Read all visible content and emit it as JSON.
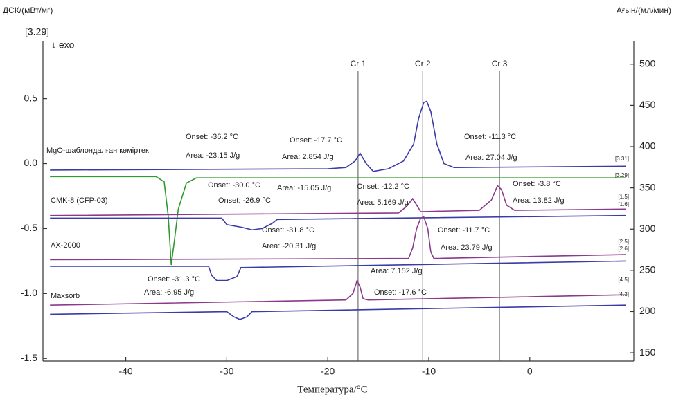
{
  "chart_data": {
    "type": "line",
    "y_label": "ДСК/(мВт/мг)",
    "y2_label": "Ағын/(мл/мин)",
    "x_label": "Температура/°C",
    "corner_note": "[3.29]",
    "direction_note": "↓ exo",
    "xlim": [
      -48.2,
      10.3
    ],
    "ylim": [
      -1.52,
      0.94
    ],
    "y2lim": [
      140,
      527.5
    ],
    "xticks": [
      -40,
      -30,
      -20,
      -10,
      0
    ],
    "yticks": [
      0.5,
      {
        "value": 0,
        "label": "0.0"
      },
      -0.5,
      {
        "value": -1,
        "label": "-1.0"
      },
      -1.5
    ],
    "y2ticks": [
      150,
      200,
      250,
      300,
      350,
      400,
      450,
      500
    ],
    "markers": [
      {
        "label": "Cr 1",
        "x": -17
      },
      {
        "label": "Cr 2",
        "x": -10.6
      },
      {
        "label": "Cr 3",
        "x": -3
      }
    ],
    "marker_color": "#555555",
    "sample_labels": [
      "MgO-шаблондалған көміртек",
      "CMK-8 (CFP-03)",
      "AX-2000",
      "Maxsorb"
    ],
    "end_labels": [
      "[3.31]",
      "[3.29]",
      "[1.5]",
      "[1.6]",
      "[2.5]",
      "[2.6]",
      "[4.5]",
      "[4.3]"
    ],
    "series": [
      {
        "color": "#3a3aa8",
        "x": [
          -47.5,
          -20,
          -18.2,
          -17.3,
          -16.8,
          -16.2,
          -15.5,
          -14,
          -12.5,
          -11.5,
          -11,
          -10.5,
          -10.2,
          -9.8,
          -9.2,
          -8.5,
          -7.5,
          9.5
        ],
        "values": [
          -0.05,
          -0.04,
          -0.03,
          0.02,
          0.08,
          0.0,
          -0.06,
          -0.04,
          0.02,
          0.15,
          0.35,
          0.47,
          0.48,
          0.4,
          0.15,
          0.0,
          -0.03,
          -0.02
        ]
      },
      {
        "color": "#2e9a2e",
        "x": [
          -47.5,
          -37,
          -36.2,
          -35.8,
          -35.5,
          -35.2,
          -34.8,
          -34,
          -33,
          9.5
        ],
        "values": [
          -0.1,
          -0.1,
          -0.14,
          -0.4,
          -0.78,
          -0.6,
          -0.35,
          -0.15,
          -0.11,
          -0.11
        ]
      },
      {
        "color": "#8b3a8b",
        "x": [
          -47.5,
          -13,
          -12.2,
          -11.6,
          -11.2,
          -10.8,
          -5,
          -3.8,
          -3.2,
          -2.8,
          -2.3,
          -1.5,
          9.5
        ],
        "values": [
          -0.4,
          -0.38,
          -0.33,
          -0.27,
          -0.32,
          -0.37,
          -0.36,
          -0.28,
          -0.17,
          -0.2,
          -0.32,
          -0.36,
          -0.35
        ]
      },
      {
        "color": "#3a3aa8",
        "x": [
          -47.5,
          -30.5,
          -30,
          -28.5,
          -27.5,
          -26.5,
          -25.5,
          -25,
          9.5
        ],
        "values": [
          -0.42,
          -0.42,
          -0.47,
          -0.49,
          -0.51,
          -0.5,
          -0.46,
          -0.43,
          -0.4
        ]
      },
      {
        "color": "#8b3a8b",
        "x": [
          -47.5,
          -12,
          -11.6,
          -11.2,
          -10.8,
          -10.5,
          -10.1,
          -9.8,
          -9.5,
          9.5
        ],
        "values": [
          -0.74,
          -0.73,
          -0.65,
          -0.5,
          -0.42,
          -0.41,
          -0.5,
          -0.68,
          -0.73,
          -0.7
        ]
      },
      {
        "color": "#3a3aa8",
        "x": [
          -47.5,
          -31.8,
          -31.5,
          -31,
          -30,
          -29,
          -28.6,
          9.5
        ],
        "values": [
          -0.79,
          -0.79,
          -0.86,
          -0.9,
          -0.9,
          -0.87,
          -0.8,
          -0.75
        ]
      },
      {
        "color": "#8b3a8b",
        "x": [
          -47.5,
          -18.2,
          -17.5,
          -17.1,
          -16.8,
          -16.5,
          -16,
          9.5
        ],
        "values": [
          -1.09,
          -1.05,
          -1.0,
          -0.9,
          -0.95,
          -1.04,
          -1.05,
          -1.01
        ]
      },
      {
        "color": "#3a3aa8",
        "x": [
          -47.5,
          -30,
          -29.3,
          -28.7,
          -28,
          -27.5,
          9.5
        ],
        "values": [
          -1.16,
          -1.14,
          -1.18,
          -1.2,
          -1.18,
          -1.14,
          -1.09
        ]
      }
    ],
    "annotations": [
      {
        "text": "Onset: -36.2 °C",
        "color": "#2e9a2e"
      },
      {
        "text": "Area: -23.15 J/g",
        "color": "#2e9a2e"
      },
      {
        "text": "Onset: -17.7 °C",
        "color": "#3a3aa8"
      },
      {
        "text": "Area: 2.854 J/g",
        "color": "#3a3aa8"
      },
      {
        "text": "Onset: -11.3 °C",
        "color": "#3a3aa8"
      },
      {
        "text": "Area: 27.04 J/g",
        "color": "#3a3aa8"
      },
      {
        "text": "Onset: -30.0 °C",
        "color": "#3a3aa8"
      },
      {
        "text": "Onset: -26.9 °C",
        "color": "#3a3aa8"
      },
      {
        "text": "Area: -15.05 J/g",
        "color": "#3a3aa8"
      },
      {
        "text": "Onset: -12.2 °C",
        "color": "#8b3a8b"
      },
      {
        "text": "Area: 5.169 J/g",
        "color": "#8b3a8b"
      },
      {
        "text": "Onset: -3.8 °C",
        "color": "#8b3a8b"
      },
      {
        "text": "Area: 13.82 J/g",
        "color": "#8b3a8b"
      },
      {
        "text": "Onset: -31.8 °C",
        "color": "#3a3aa8"
      },
      {
        "text": "Area: -20.31 J/g",
        "color": "#3a3aa8"
      },
      {
        "text": "Onset: -11.7 °C",
        "color": "#8b3a8b"
      },
      {
        "text": "Area: 23.79 J/g",
        "color": "#8b3a8b"
      },
      {
        "text": "Onset: -31.3 °C",
        "color": "#3a3aa8"
      },
      {
        "text": "Area: -6.95 J/g",
        "color": "#3a3aa8"
      },
      {
        "text": "Area: 7.152 J/g",
        "color": "#8b3a8b"
      },
      {
        "text": "Onset: -17.6 °C",
        "color": "#8b3a8b"
      }
    ]
  }
}
